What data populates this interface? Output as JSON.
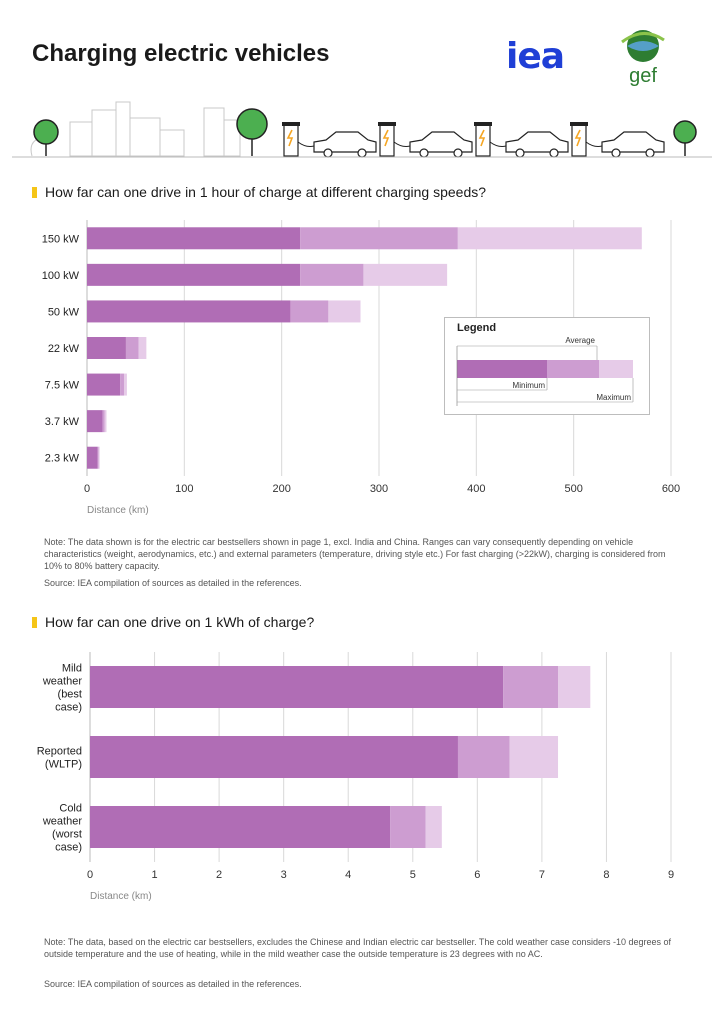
{
  "page": {
    "title": "Charging electric vehicles",
    "logo_iea": "iea",
    "logo_gef": "gef"
  },
  "colors": {
    "minimum": "#b06db5",
    "average": "#cd9dd1",
    "maximum": "#e6cbe8",
    "grid": "#d9d9d9",
    "marker": "#f5c518",
    "iea_blue": "#1f3fd6",
    "tree_green": "#4caf50"
  },
  "chart1": {
    "section_title": "How far can one drive in 1 hour of charge at different charging speeds?",
    "note": "Note: The data shown is for the electric car bestsellers shown in page 1, excl. India and China. Ranges can vary consequently depending on vehicle characteristics (weight, aerodynamics, etc.) and external parameters (temperature, driving style etc.) For fast charging (>22kW), charging is considered from 10% to 80% battery capacity.",
    "source": "Source: IEA compilation of sources as detailed in the references.",
    "legend": {
      "title": "Legend",
      "average": "Average",
      "minimum": "Minimum",
      "maximum": "Maximum"
    }
  },
  "chart2": {
    "section_title": "How far can one drive on 1 kWh of charge?",
    "note": "Note: The data, based on the electric car bestsellers, excludes the Chinese and Indian electric car bestseller. The cold weather case considers -10 degrees of outside temperature and the use of heating, while in the mild weather case the outside temperature is 23 degrees with no AC.",
    "source": "Source: IEA compilation of sources as detailed in the references."
  },
  "chart_data": [
    {
      "type": "bar",
      "orientation": "horizontal",
      "stacked_ranges": true,
      "title": "How far can one drive in 1 hour of charge at different charging speeds?",
      "xlabel": "Distance (km)",
      "ylabel": "",
      "xlim": [
        0,
        600
      ],
      "xticks": [
        0,
        100,
        200,
        300,
        400,
        500,
        600
      ],
      "grid": "vertical",
      "categories": [
        "150 kW",
        "100 kW",
        "50 kW",
        "22 kW",
        "7.5 kW",
        "3.7 kW",
        "2.3 kW"
      ],
      "series": [
        {
          "name": "Minimum",
          "values": [
            219,
            219,
            209,
            40,
            34,
            16,
            11
          ]
        },
        {
          "name": "Average",
          "values": [
            381,
            284,
            248,
            53,
            38,
            18,
            12
          ]
        },
        {
          "name": "Maximum",
          "values": [
            570,
            370,
            281,
            61,
            41,
            20,
            13
          ]
        }
      ],
      "legend_position": "right"
    },
    {
      "type": "bar",
      "orientation": "horizontal",
      "stacked_ranges": true,
      "title": "How far can one drive on 1 kWh of charge?",
      "xlabel": "Distance (km)",
      "ylabel": "",
      "xlim": [
        0,
        9
      ],
      "xticks": [
        0,
        1,
        2,
        3,
        4,
        5,
        6,
        7,
        8,
        9
      ],
      "grid": "vertical",
      "categories": [
        [
          "Mild",
          "weather",
          "(best",
          "case)"
        ],
        [
          "Reported",
          "(WLTP)"
        ],
        [
          "Cold",
          "weather",
          "(worst",
          "case)"
        ]
      ],
      "series": [
        {
          "name": "Minimum",
          "values": [
            6.4,
            5.7,
            4.65
          ]
        },
        {
          "name": "Average",
          "values": [
            7.25,
            6.5,
            5.2
          ]
        },
        {
          "name": "Maximum",
          "values": [
            7.75,
            7.25,
            5.45
          ]
        }
      ]
    }
  ]
}
